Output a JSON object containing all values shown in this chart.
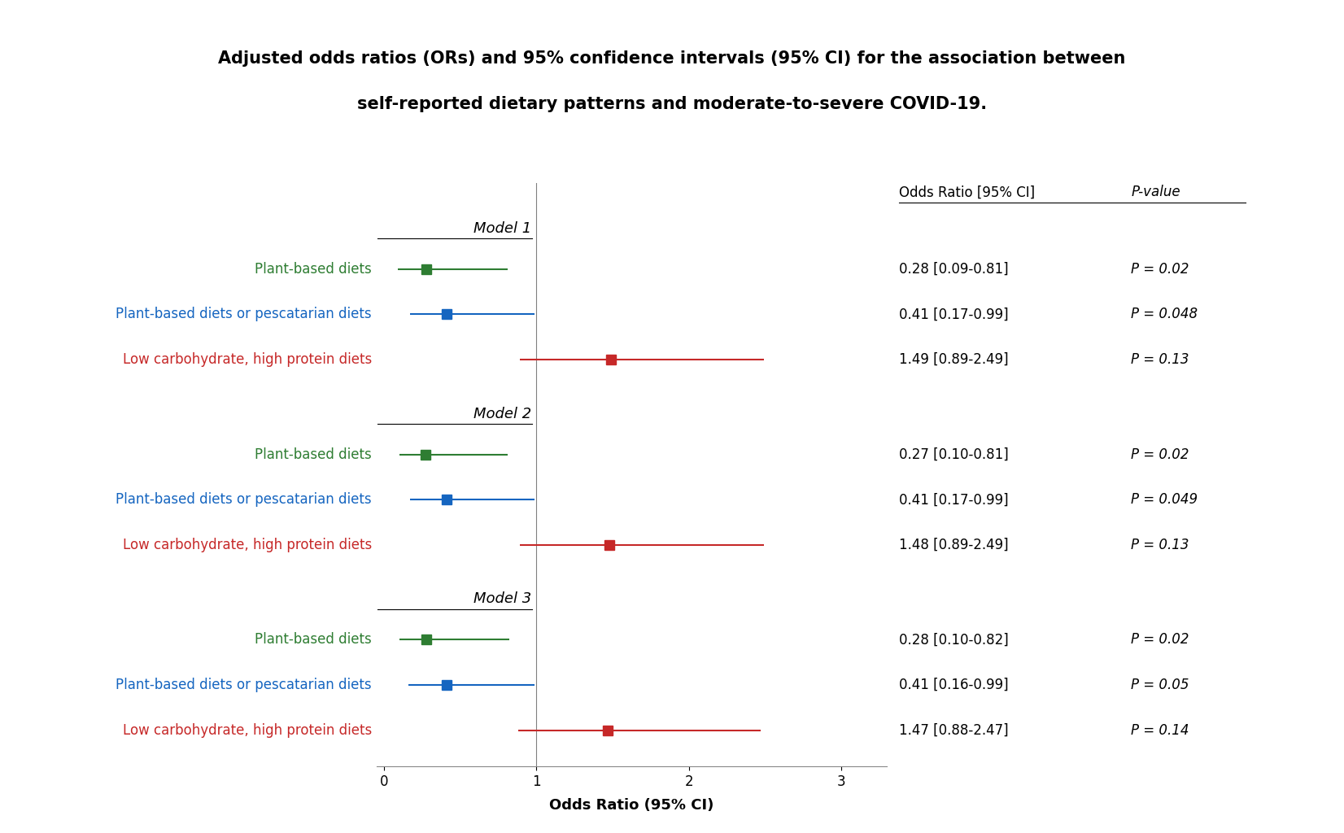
{
  "title_line1": "Adjusted odds ratios (ORs) and 95% confidence intervals (95% CI) for the association between",
  "title_line2": "self-reported dietary patterns and moderate-to-severe COVID-19.",
  "xlabel": "Odds Ratio (95% CI)",
  "models": [
    "Model 1",
    "Model 2",
    "Model 3"
  ],
  "diet_labels": [
    "Plant-based diets",
    "Plant-based diets or pescatarian diets",
    "Low carbohydrate, high protein diets"
  ],
  "diet_colors": [
    "#2e7d32",
    "#1565c0",
    "#c62828"
  ],
  "data": {
    "Model 1": {
      "Plant-based diets": {
        "or": 0.28,
        "ci_lo": 0.09,
        "ci_hi": 0.81,
        "ci_str": "0.28 [0.09-0.81]",
        "p_str": "P = 0.02"
      },
      "Plant-based diets or pescatarian diets": {
        "or": 0.41,
        "ci_lo": 0.17,
        "ci_hi": 0.99,
        "ci_str": "0.41 [0.17-0.99]",
        "p_str": "P = 0.048"
      },
      "Low carbohydrate, high protein diets": {
        "or": 1.49,
        "ci_lo": 0.89,
        "ci_hi": 2.49,
        "ci_str": "1.49 [0.89-2.49]",
        "p_str": "P = 0.13"
      }
    },
    "Model 2": {
      "Plant-based diets": {
        "or": 0.27,
        "ci_lo": 0.1,
        "ci_hi": 0.81,
        "ci_str": "0.27 [0.10-0.81]",
        "p_str": "P = 0.02"
      },
      "Plant-based diets or pescatarian diets": {
        "or": 0.41,
        "ci_lo": 0.17,
        "ci_hi": 0.99,
        "ci_str": "0.41 [0.17-0.99]",
        "p_str": "P = 0.049"
      },
      "Low carbohydrate, high protein diets": {
        "or": 1.48,
        "ci_lo": 0.89,
        "ci_hi": 2.49,
        "ci_str": "1.48 [0.89-2.49]",
        "p_str": "P = 0.13"
      }
    },
    "Model 3": {
      "Plant-based diets": {
        "or": 0.28,
        "ci_lo": 0.1,
        "ci_hi": 0.82,
        "ci_str": "0.28 [0.10-0.82]",
        "p_str": "P = 0.02"
      },
      "Plant-based diets or pescatarian diets": {
        "or": 0.41,
        "ci_lo": 0.16,
        "ci_hi": 0.99,
        "ci_str": "0.41 [0.16-0.99]",
        "p_str": "P = 0.05"
      },
      "Low carbohydrate, high protein diets": {
        "or": 1.47,
        "ci_lo": 0.88,
        "ci_hi": 2.47,
        "ci_str": "1.47 [0.88-2.47]",
        "p_str": "P = 0.14"
      }
    }
  },
  "xlim": [
    -0.05,
    3.3
  ],
  "xticks": [
    0,
    1,
    2,
    3
  ],
  "ref_line": 1.0,
  "background_color": "#ffffff",
  "text_color": "#000000",
  "title_fontsize": 15,
  "label_fontsize": 12,
  "tick_fontsize": 12,
  "annotation_fontsize": 12,
  "model_label_fontsize": 13
}
